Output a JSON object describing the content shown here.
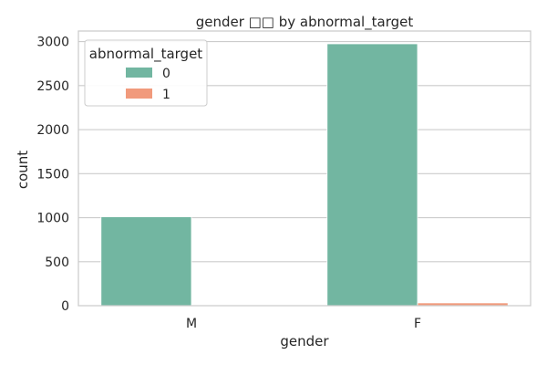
{
  "chart_data": {
    "type": "bar",
    "title": "gender □□ by abnormal_target",
    "xlabel": "gender",
    "ylabel": "count",
    "categories": [
      "M",
      "F"
    ],
    "series": [
      {
        "name": "0",
        "values": [
          1010,
          2975
        ]
      },
      {
        "name": "1",
        "values": [
          8,
          32
        ]
      }
    ],
    "legend_title": "abnormal_target",
    "legend_position": "top-left",
    "ylim": [
      0,
      3120
    ],
    "yticks": [
      0,
      500,
      1000,
      1500,
      2000,
      2500,
      3000
    ],
    "ytick_labels": [
      "0",
      "500",
      "1000",
      "1500",
      "2000",
      "2500",
      "3000"
    ],
    "grid": "horizontal",
    "colors": [
      "#72b6a1",
      "#f19a7c"
    ]
  }
}
